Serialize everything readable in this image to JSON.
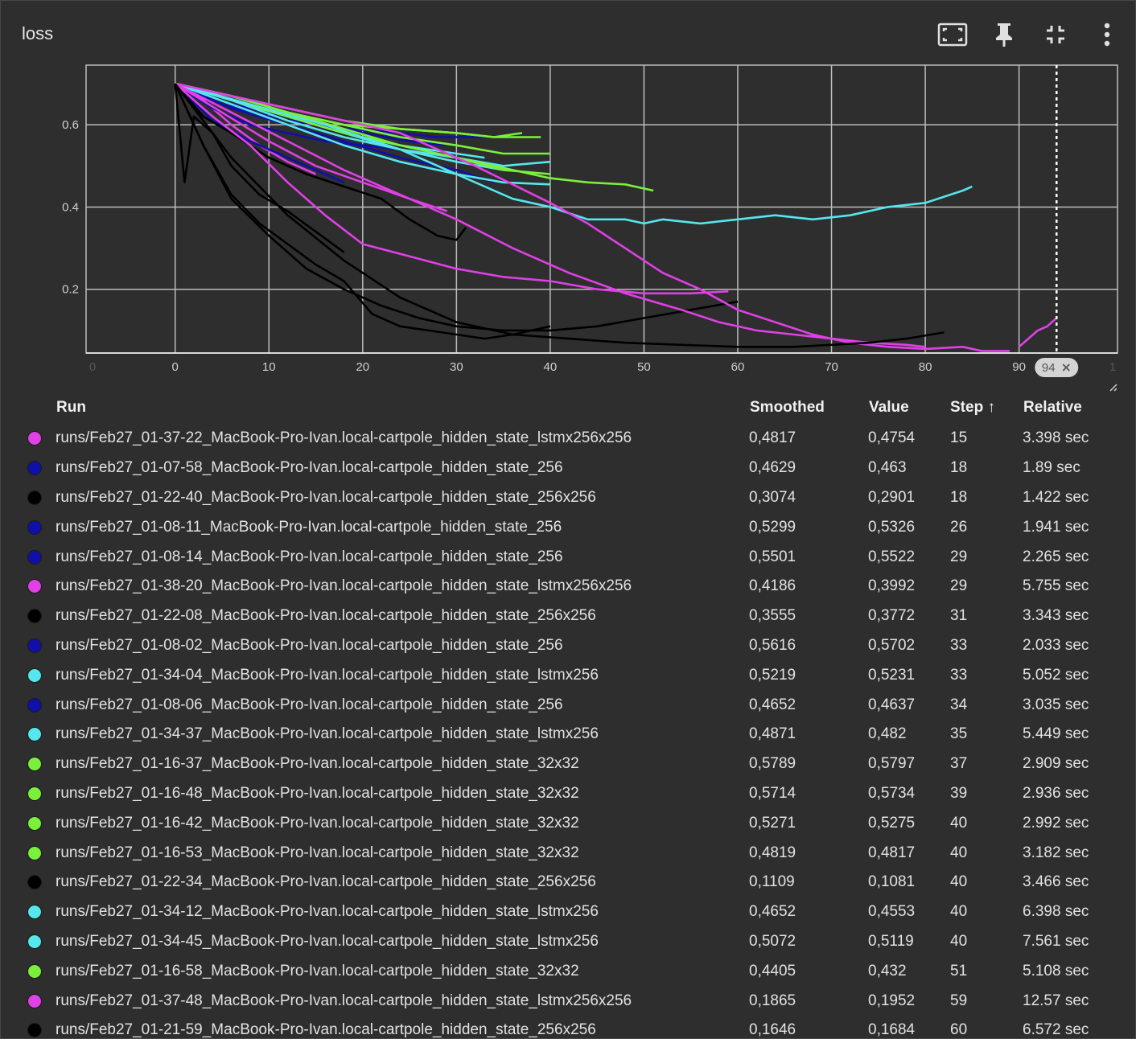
{
  "card": {
    "title": "loss"
  },
  "toolbar": {
    "fit_icon": "fit-domain-icon",
    "pin_icon": "pin-icon",
    "collapse_icon": "collapse-icon",
    "more_icon": "more-vert-icon"
  },
  "chart_data": {
    "type": "line",
    "title": "loss",
    "xlabel": "",
    "ylabel": "",
    "xlim": [
      -9.5,
      100.5
    ],
    "ylim": [
      0.045,
      0.745
    ],
    "grid": true,
    "x_ticks": [
      "0",
      "10",
      "20",
      "30",
      "40",
      "50",
      "60",
      "70",
      "80",
      "90"
    ],
    "y_ticks": [
      "0.2",
      "0.4",
      "0.6"
    ],
    "edge_ticks": [
      "0",
      "1"
    ],
    "step_marker": {
      "x": 94,
      "label": "94"
    },
    "series": [
      {
        "color": "#e040e6",
        "x": [
          0,
          3,
          6,
          9,
          12,
          15
        ],
        "y": [
          0.7,
          0.66,
          0.6,
          0.55,
          0.51,
          0.48
        ]
      },
      {
        "color": "#1010a8",
        "x": [
          0,
          4,
          8,
          12,
          15,
          18
        ],
        "y": [
          0.7,
          0.61,
          0.56,
          0.52,
          0.49,
          0.46
        ]
      },
      {
        "color": "#000000",
        "x": [
          0,
          1,
          2,
          4,
          6,
          9,
          12,
          15,
          18
        ],
        "y": [
          0.7,
          0.46,
          0.62,
          0.58,
          0.5,
          0.43,
          0.39,
          0.34,
          0.29
        ]
      },
      {
        "color": "#1010a8",
        "x": [
          0,
          4,
          8,
          12,
          16,
          20,
          24,
          26
        ],
        "y": [
          0.7,
          0.64,
          0.6,
          0.58,
          0.56,
          0.55,
          0.54,
          0.53
        ]
      },
      {
        "color": "#1010a8",
        "x": [
          0,
          5,
          10,
          15,
          20,
          25,
          29
        ],
        "y": [
          0.7,
          0.65,
          0.62,
          0.6,
          0.58,
          0.56,
          0.55
        ]
      },
      {
        "color": "#e040e6",
        "x": [
          0,
          5,
          10,
          15,
          20,
          25,
          29
        ],
        "y": [
          0.7,
          0.63,
          0.56,
          0.5,
          0.46,
          0.42,
          0.39
        ]
      },
      {
        "color": "#000000",
        "x": [
          0,
          3,
          6,
          10,
          14,
          18,
          22,
          25,
          28,
          30,
          31
        ],
        "y": [
          0.7,
          0.62,
          0.58,
          0.52,
          0.48,
          0.45,
          0.42,
          0.37,
          0.33,
          0.32,
          0.35
        ]
      },
      {
        "color": "#1010a8",
        "x": [
          0,
          6,
          12,
          18,
          24,
          28,
          33
        ],
        "y": [
          0.7,
          0.65,
          0.62,
          0.59,
          0.58,
          0.57,
          0.57
        ]
      },
      {
        "color": "#55e6ee",
        "x": [
          0,
          6,
          12,
          18,
          24,
          30,
          33
        ],
        "y": [
          0.7,
          0.66,
          0.62,
          0.58,
          0.55,
          0.53,
          0.52
        ]
      },
      {
        "color": "#1010a8",
        "x": [
          0,
          6,
          12,
          18,
          24,
          30,
          34
        ],
        "y": [
          0.7,
          0.64,
          0.6,
          0.56,
          0.52,
          0.49,
          0.46
        ]
      },
      {
        "color": "#55e6ee",
        "x": [
          0,
          6,
          12,
          18,
          24,
          30,
          35
        ],
        "y": [
          0.7,
          0.66,
          0.62,
          0.58,
          0.54,
          0.51,
          0.49
        ]
      },
      {
        "color": "#7bf03c",
        "x": [
          0,
          6,
          12,
          18,
          24,
          30,
          34,
          37
        ],
        "y": [
          0.7,
          0.67,
          0.64,
          0.61,
          0.59,
          0.58,
          0.57,
          0.58
        ]
      },
      {
        "color": "#7bf03c",
        "x": [
          0,
          6,
          12,
          18,
          24,
          30,
          34,
          39
        ],
        "y": [
          0.7,
          0.67,
          0.63,
          0.6,
          0.59,
          0.58,
          0.57,
          0.57
        ]
      },
      {
        "color": "#7bf03c",
        "x": [
          0,
          6,
          12,
          18,
          24,
          30,
          35,
          40
        ],
        "y": [
          0.7,
          0.67,
          0.63,
          0.6,
          0.57,
          0.55,
          0.53,
          0.53
        ]
      },
      {
        "color": "#7bf03c",
        "x": [
          0,
          6,
          12,
          18,
          24,
          30,
          35,
          40
        ],
        "y": [
          0.7,
          0.66,
          0.62,
          0.58,
          0.55,
          0.52,
          0.49,
          0.48
        ]
      },
      {
        "color": "#000000",
        "x": [
          0,
          3,
          6,
          9,
          12,
          15,
          18,
          21,
          24,
          27,
          30,
          33,
          36,
          40
        ],
        "y": [
          0.7,
          0.55,
          0.43,
          0.36,
          0.31,
          0.26,
          0.22,
          0.14,
          0.11,
          0.1,
          0.09,
          0.08,
          0.09,
          0.11
        ]
      },
      {
        "color": "#55e6ee",
        "x": [
          0,
          6,
          12,
          18,
          24,
          30,
          35,
          40
        ],
        "y": [
          0.7,
          0.65,
          0.6,
          0.55,
          0.51,
          0.48,
          0.46,
          0.455
        ]
      },
      {
        "color": "#55e6ee",
        "x": [
          0,
          6,
          12,
          18,
          24,
          30,
          35,
          40
        ],
        "y": [
          0.7,
          0.66,
          0.61,
          0.57,
          0.54,
          0.52,
          0.5,
          0.51
        ]
      },
      {
        "color": "#7bf03c",
        "x": [
          0,
          6,
          12,
          18,
          24,
          30,
          36,
          40,
          44,
          48,
          51
        ],
        "y": [
          0.7,
          0.67,
          0.63,
          0.59,
          0.55,
          0.52,
          0.49,
          0.47,
          0.46,
          0.455,
          0.44
        ]
      },
      {
        "color": "#e040e6",
        "x": [
          0,
          4,
          8,
          12,
          16,
          20,
          25,
          30,
          35,
          40,
          45,
          50,
          55,
          59
        ],
        "y": [
          0.7,
          0.62,
          0.55,
          0.46,
          0.38,
          0.31,
          0.28,
          0.25,
          0.23,
          0.22,
          0.2,
          0.19,
          0.19,
          0.195
        ]
      },
      {
        "color": "#000000",
        "x": [
          0,
          3,
          6,
          10,
          14,
          18,
          22,
          26,
          30,
          35,
          40,
          45,
          50,
          55,
          60
        ],
        "y": [
          0.7,
          0.55,
          0.42,
          0.33,
          0.25,
          0.2,
          0.16,
          0.13,
          0.11,
          0.1,
          0.1,
          0.11,
          0.13,
          0.15,
          0.17
        ]
      },
      {
        "color": "#55e6ee",
        "x": [
          0,
          8,
          16,
          24,
          32,
          36,
          40,
          44,
          48,
          50,
          52,
          56,
          60,
          64,
          68,
          72,
          76,
          80,
          84,
          85
        ],
        "y": [
          0.7,
          0.65,
          0.6,
          0.54,
          0.46,
          0.42,
          0.4,
          0.37,
          0.37,
          0.36,
          0.37,
          0.36,
          0.37,
          0.38,
          0.37,
          0.38,
          0.4,
          0.41,
          0.44,
          0.45
        ]
      },
      {
        "color": "#e040e6",
        "x": [
          0,
          6,
          12,
          18,
          24,
          30,
          36,
          42,
          48,
          54,
          58,
          62,
          66,
          70,
          74,
          78,
          80
        ],
        "y": [
          0.7,
          0.63,
          0.56,
          0.49,
          0.43,
          0.37,
          0.3,
          0.24,
          0.19,
          0.15,
          0.12,
          0.1,
          0.09,
          0.08,
          0.07,
          0.065,
          0.06
        ]
      },
      {
        "color": "#e040e6",
        "x": [
          0,
          8,
          16,
          24,
          32,
          40,
          44,
          48,
          52,
          56,
          60,
          64,
          68,
          72,
          76,
          80,
          84,
          86,
          89
        ],
        "y": [
          0.7,
          0.66,
          0.62,
          0.58,
          0.5,
          0.41,
          0.36,
          0.3,
          0.24,
          0.2,
          0.15,
          0.12,
          0.09,
          0.07,
          0.06,
          0.055,
          0.06,
          0.05,
          0.05
        ]
      },
      {
        "color": "#000000",
        "x": [
          0,
          6,
          12,
          18,
          24,
          30,
          36,
          42,
          48,
          54,
          60,
          66,
          70,
          74,
          78,
          82
        ],
        "y": [
          0.7,
          0.52,
          0.38,
          0.27,
          0.18,
          0.12,
          0.09,
          0.08,
          0.07,
          0.065,
          0.06,
          0.06,
          0.065,
          0.07,
          0.08,
          0.095
        ]
      },
      {
        "color": "#e040e6",
        "x": [
          90,
          91,
          92,
          93,
          94
        ],
        "y": [
          0.06,
          0.08,
          0.1,
          0.11,
          0.13
        ]
      }
    ]
  },
  "table": {
    "headers": {
      "run": "Run",
      "smoothed": "Smoothed",
      "value": "Value",
      "step": "Step ↑",
      "relative": "Relative"
    },
    "rows": [
      {
        "color": "#e040e6",
        "run": "runs/Feb27_01-37-22_MacBook-Pro-Ivan.local-cartpole_hidden_state_lstmx256x256",
        "smoothed": "0,4817",
        "value": "0,4754",
        "step": "15",
        "relative": "3.398 sec"
      },
      {
        "color": "#1010a8",
        "run": "runs/Feb27_01-07-58_MacBook-Pro-Ivan.local-cartpole_hidden_state_256",
        "smoothed": "0,4629",
        "value": "0,463",
        "step": "18",
        "relative": "1.89 sec"
      },
      {
        "color": "#000000",
        "run": "runs/Feb27_01-22-40_MacBook-Pro-Ivan.local-cartpole_hidden_state_256x256",
        "smoothed": "0,3074",
        "value": "0,2901",
        "step": "18",
        "relative": "1.422 sec"
      },
      {
        "color": "#1010a8",
        "run": "runs/Feb27_01-08-11_MacBook-Pro-Ivan.local-cartpole_hidden_state_256",
        "smoothed": "0,5299",
        "value": "0,5326",
        "step": "26",
        "relative": "1.941 sec"
      },
      {
        "color": "#1010a8",
        "run": "runs/Feb27_01-08-14_MacBook-Pro-Ivan.local-cartpole_hidden_state_256",
        "smoothed": "0,5501",
        "value": "0,5522",
        "step": "29",
        "relative": "2.265 sec"
      },
      {
        "color": "#e040e6",
        "run": "runs/Feb27_01-38-20_MacBook-Pro-Ivan.local-cartpole_hidden_state_lstmx256x256",
        "smoothed": "0,4186",
        "value": "0,3992",
        "step": "29",
        "relative": "5.755 sec"
      },
      {
        "color": "#000000",
        "run": "runs/Feb27_01-22-08_MacBook-Pro-Ivan.local-cartpole_hidden_state_256x256",
        "smoothed": "0,3555",
        "value": "0,3772",
        "step": "31",
        "relative": "3.343 sec"
      },
      {
        "color": "#1010a8",
        "run": "runs/Feb27_01-08-02_MacBook-Pro-Ivan.local-cartpole_hidden_state_256",
        "smoothed": "0,5616",
        "value": "0,5702",
        "step": "33",
        "relative": "2.033 sec"
      },
      {
        "color": "#55e6ee",
        "run": "runs/Feb27_01-34-04_MacBook-Pro-Ivan.local-cartpole_hidden_state_lstmx256",
        "smoothed": "0,5219",
        "value": "0,5231",
        "step": "33",
        "relative": "5.052 sec"
      },
      {
        "color": "#1010a8",
        "run": "runs/Feb27_01-08-06_MacBook-Pro-Ivan.local-cartpole_hidden_state_256",
        "smoothed": "0,4652",
        "value": "0,4637",
        "step": "34",
        "relative": "3.035 sec"
      },
      {
        "color": "#55e6ee",
        "run": "runs/Feb27_01-34-37_MacBook-Pro-Ivan.local-cartpole_hidden_state_lstmx256",
        "smoothed": "0,4871",
        "value": "0,482",
        "step": "35",
        "relative": "5.449 sec"
      },
      {
        "color": "#7bf03c",
        "run": "runs/Feb27_01-16-37_MacBook-Pro-Ivan.local-cartpole_hidden_state_32x32",
        "smoothed": "0,5789",
        "value": "0,5797",
        "step": "37",
        "relative": "2.909 sec"
      },
      {
        "color": "#7bf03c",
        "run": "runs/Feb27_01-16-48_MacBook-Pro-Ivan.local-cartpole_hidden_state_32x32",
        "smoothed": "0,5714",
        "value": "0,5734",
        "step": "39",
        "relative": "2.936 sec"
      },
      {
        "color": "#7bf03c",
        "run": "runs/Feb27_01-16-42_MacBook-Pro-Ivan.local-cartpole_hidden_state_32x32",
        "smoothed": "0,5271",
        "value": "0,5275",
        "step": "40",
        "relative": "2.992 sec"
      },
      {
        "color": "#7bf03c",
        "run": "runs/Feb27_01-16-53_MacBook-Pro-Ivan.local-cartpole_hidden_state_32x32",
        "smoothed": "0,4819",
        "value": "0,4817",
        "step": "40",
        "relative": "3.182 sec"
      },
      {
        "color": "#000000",
        "run": "runs/Feb27_01-22-34_MacBook-Pro-Ivan.local-cartpole_hidden_state_256x256",
        "smoothed": "0,1109",
        "value": "0,1081",
        "step": "40",
        "relative": "3.466 sec"
      },
      {
        "color": "#55e6ee",
        "run": "runs/Feb27_01-34-12_MacBook-Pro-Ivan.local-cartpole_hidden_state_lstmx256",
        "smoothed": "0,4652",
        "value": "0,4553",
        "step": "40",
        "relative": "6.398 sec"
      },
      {
        "color": "#55e6ee",
        "run": "runs/Feb27_01-34-45_MacBook-Pro-Ivan.local-cartpole_hidden_state_lstmx256",
        "smoothed": "0,5072",
        "value": "0,5119",
        "step": "40",
        "relative": "7.561 sec"
      },
      {
        "color": "#7bf03c",
        "run": "runs/Feb27_01-16-58_MacBook-Pro-Ivan.local-cartpole_hidden_state_32x32",
        "smoothed": "0,4405",
        "value": "0,432",
        "step": "51",
        "relative": "5.108 sec"
      },
      {
        "color": "#e040e6",
        "run": "runs/Feb27_01-37-48_MacBook-Pro-Ivan.local-cartpole_hidden_state_lstmx256x256",
        "smoothed": "0,1865",
        "value": "0,1952",
        "step": "59",
        "relative": "12.57 sec"
      },
      {
        "color": "#000000",
        "run": "runs/Feb27_01-21-59_MacBook-Pro-Ivan.local-cartpole_hidden_state_256x256",
        "smoothed": "0,1646",
        "value": "0,1684",
        "step": "60",
        "relative": "6.572 sec"
      }
    ]
  }
}
